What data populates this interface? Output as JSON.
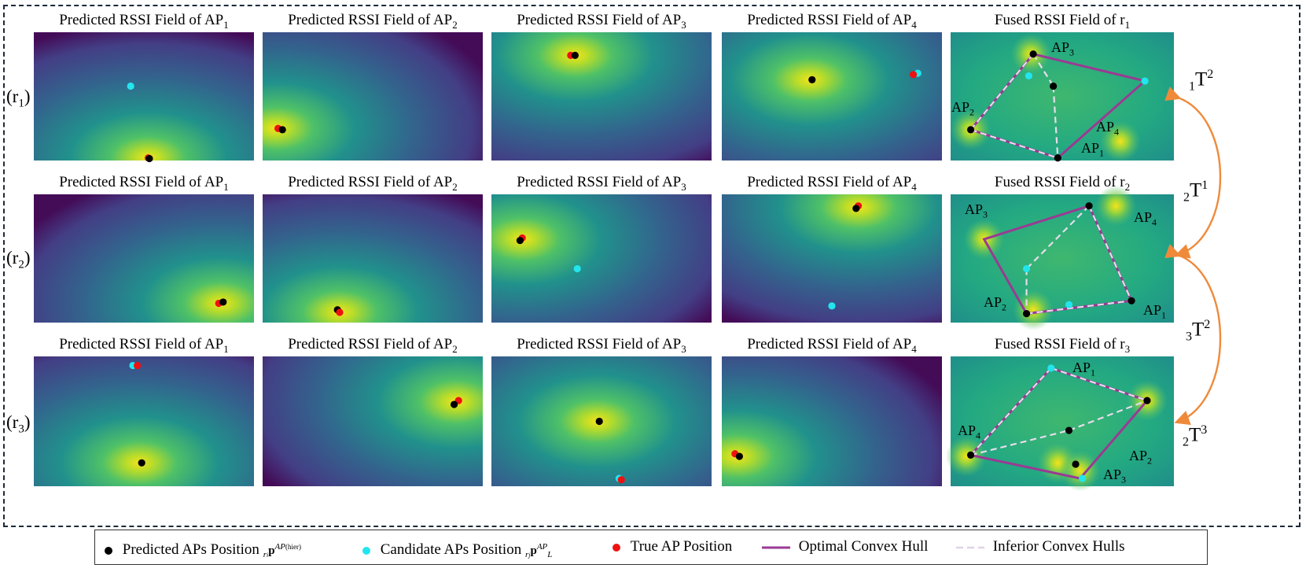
{
  "colors": {
    "predicted": "#000000",
    "candidate": "#22e5ee",
    "true": "#ee1111",
    "optimal_hull": "#9a3a93",
    "inferior_hull": "#e6dcec",
    "transition": "#ef8a3a",
    "frame": "#1c2a3a"
  },
  "panel_base": "Predicted RSSI Field of AP",
  "fused_base": "Fused RSSI Field of r",
  "rows": [
    {
      "label": "r",
      "label_sub": "1",
      "titles": [
        [
          "1"
        ],
        [
          "2"
        ],
        [
          "3"
        ],
        [
          "4"
        ]
      ],
      "fused_sub": "1"
    },
    {
      "label": "r",
      "label_sub": "2",
      "titles": [
        [
          "1"
        ],
        [
          "2"
        ],
        [
          "3"
        ],
        [
          "4"
        ]
      ],
      "fused_sub": "2"
    },
    {
      "label": "r",
      "label_sub": "3",
      "titles": [
        [
          "1"
        ],
        [
          "2"
        ],
        [
          "3"
        ],
        [
          "4"
        ]
      ],
      "fused_sub": "3"
    }
  ],
  "ap_label": "AP",
  "transitions": [
    {
      "pre": "1",
      "main": "T",
      "sup": "2"
    },
    {
      "pre": "2",
      "main": "T",
      "sup": "1"
    },
    {
      "pre": "3",
      "main": "T",
      "sup": "2"
    },
    {
      "pre": "2",
      "main": "T",
      "sup": "3"
    }
  ],
  "legend": {
    "predicted": "Predicted APs Position",
    "predicted_math_sub": "r",
    "predicted_math_sub2": "i",
    "predicted_math_main": "p",
    "predicted_math_sup": "AP",
    "predicted_math_sup_sub": "(hier)",
    "candidate": "Candidate APs Position",
    "candidate_math_sub": "r",
    "candidate_math_sub2": "j",
    "candidate_math_main": "p",
    "candidate_math_sup": "AP",
    "candidate_math_lsub": "L",
    "true": "True AP Position",
    "optimal": "Optimal Convex Hull",
    "inferior": "Inferior Convex Hulls"
  }
}
